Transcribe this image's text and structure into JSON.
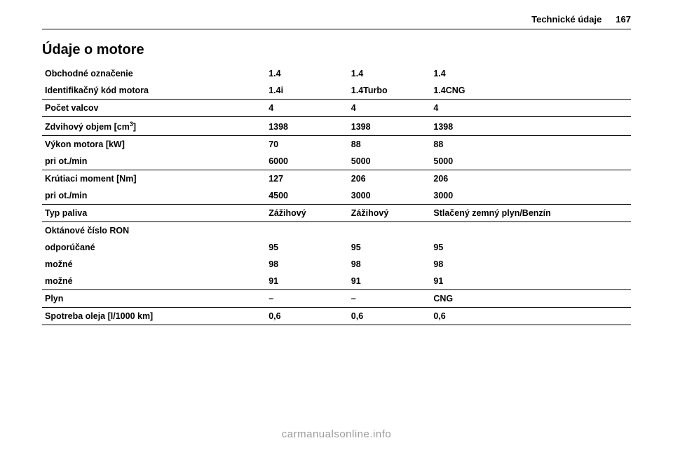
{
  "header": {
    "section": "Technické údaje",
    "page": "167"
  },
  "title": "Údaje o motore",
  "rows": {
    "r1": {
      "label": "Obchodné označenie",
      "c1": "1.4",
      "c2": "1.4",
      "c3": "1.4"
    },
    "r2": {
      "label": "Identifikačný kód motora",
      "c1": "1.4i",
      "c2": "1.4Turbo",
      "c3": "1.4CNG"
    },
    "r3": {
      "label": "Počet valcov",
      "c1": "4",
      "c2": "4",
      "c3": "4"
    },
    "r4": {
      "label_a": "Zdvihový objem [cm",
      "label_b": "]",
      "c1": "1398",
      "c2": "1398",
      "c3": "1398"
    },
    "r5": {
      "label": "Výkon motora [kW]",
      "c1": "70",
      "c2": "88",
      "c3": "88"
    },
    "r6": {
      "label": "pri ot./min",
      "c1": "6000",
      "c2": "5000",
      "c3": "5000"
    },
    "r7": {
      "label": "Krútiaci moment [Nm]",
      "c1": "127",
      "c2": "206",
      "c3": "206"
    },
    "r8": {
      "label": "pri ot./min",
      "c1": "4500",
      "c2": "3000",
      "c3": "3000"
    },
    "r9": {
      "label": "Typ paliva",
      "c1": "Zážihový",
      "c2": "Zážihový",
      "c3": "Stlačený zemný plyn/Benzín"
    },
    "r10": {
      "label": "Oktánové číslo RON"
    },
    "r11": {
      "label": "odporúčané",
      "c1": "95",
      "c2": "95",
      "c3": "95"
    },
    "r12": {
      "label": "možné",
      "c1": "98",
      "c2": "98",
      "c3": "98"
    },
    "r13": {
      "label": "možné",
      "c1": "91",
      "c2": "91",
      "c3": "91"
    },
    "r14": {
      "label": "Plyn",
      "c1": "–",
      "c2": "–",
      "c3": "CNG"
    },
    "r15": {
      "label": "Spotreba oleja [l/1000 km]",
      "c1": "0,6",
      "c2": "0,6",
      "c3": "0,6"
    }
  },
  "footer": "carmanualsonline.info"
}
